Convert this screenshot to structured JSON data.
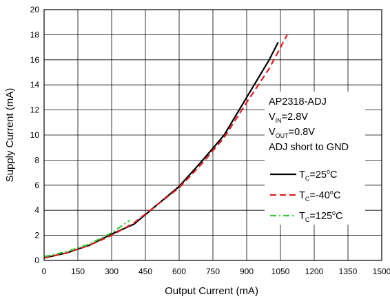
{
  "chart_data": {
    "type": "line",
    "xlabel": "Output Current (mA)",
    "ylabel": "Supply Current (mA)",
    "xlim": [
      0,
      1500
    ],
    "ylim": [
      0,
      20
    ],
    "xticks": [
      0,
      150,
      300,
      450,
      600,
      750,
      900,
      1050,
      1200,
      1350,
      1500
    ],
    "yticks": [
      0,
      2,
      4,
      6,
      8,
      10,
      12,
      14,
      16,
      18,
      20
    ],
    "grid": true,
    "legend_placement": "right",
    "annotation": {
      "device": "AP2318-ADJ",
      "vin_prefix": "V",
      "vin_sub": "IN",
      "vin_value": "=2.8V",
      "vout_prefix": "V",
      "vout_sub": "OUT",
      "vout_value": "=0.8V",
      "adj": "ADJ short to GND"
    },
    "series": [
      {
        "label_prefix": "T",
        "label_sub": "C",
        "label_value": "=25",
        "label_sup": "o",
        "label_unit": "C",
        "color": "#000000",
        "style": "solid",
        "x": [
          0,
          100,
          200,
          300,
          400,
          500,
          600,
          700,
          800,
          900,
          1000,
          1040
        ],
        "y": [
          0.2,
          0.6,
          1.2,
          2.1,
          2.9,
          4.4,
          5.9,
          7.9,
          10.0,
          13.0,
          16.0,
          17.4
        ]
      },
      {
        "label_prefix": "T",
        "label_sub": "C",
        "label_value": "=-40",
        "label_sup": "o",
        "label_unit": "C",
        "color": "#e31a1c",
        "style": "dashed",
        "x": [
          0,
          100,
          200,
          300,
          400,
          500,
          600,
          700,
          800,
          900,
          1000,
          1080
        ],
        "y": [
          0.2,
          0.6,
          1.2,
          2.0,
          3.0,
          4.4,
          5.8,
          7.7,
          9.8,
          12.6,
          15.3,
          18.0
        ]
      },
      {
        "label_prefix": "T",
        "label_sub": "C",
        "label_value": "=125",
        "label_sup": "o",
        "label_unit": "C",
        "color": "#33cc33",
        "style": "dashdot",
        "x": [
          0,
          100,
          200,
          300,
          380
        ],
        "y": [
          0.3,
          0.7,
          1.3,
          2.2,
          3.2
        ]
      }
    ]
  }
}
